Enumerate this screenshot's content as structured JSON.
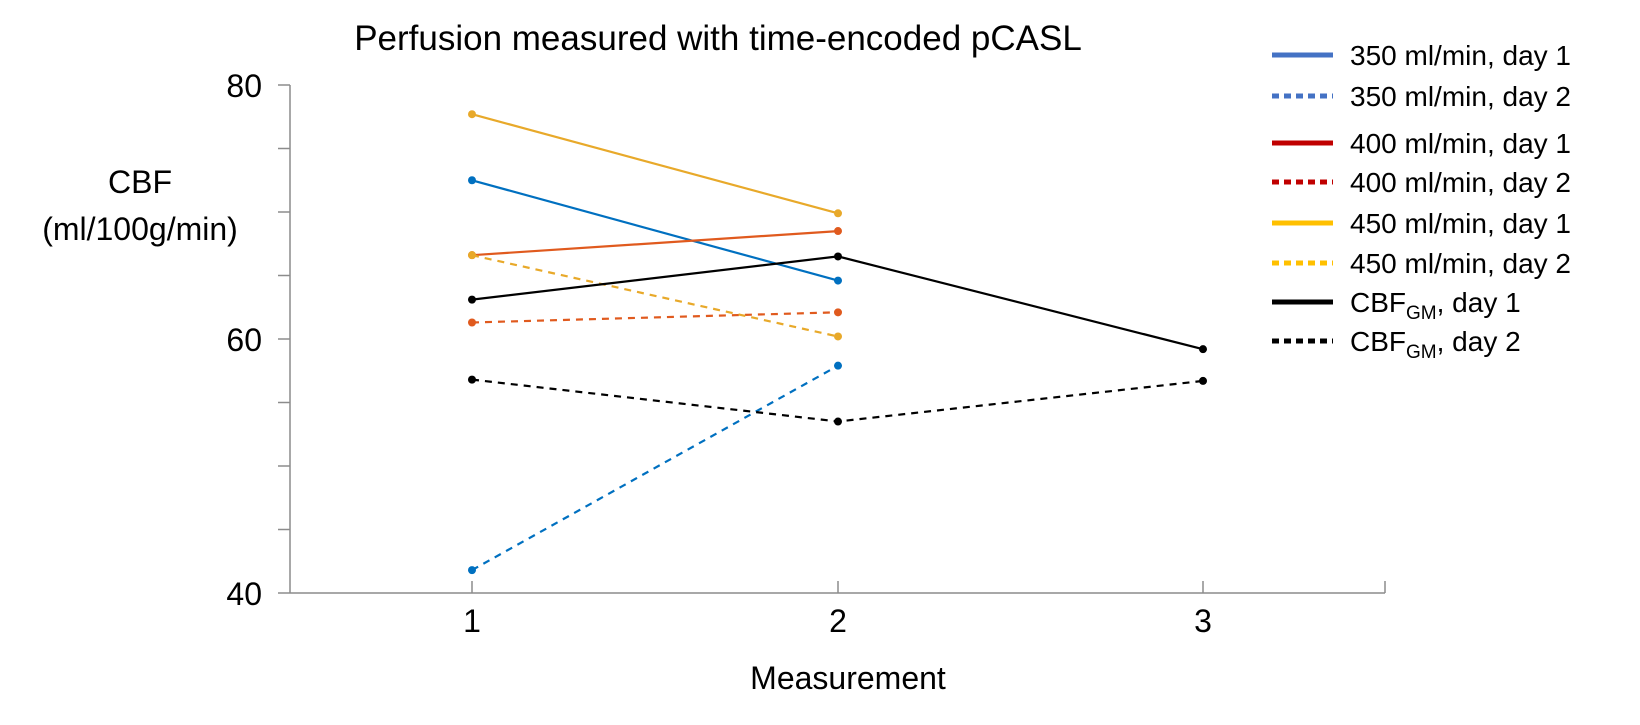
{
  "chart_data": {
    "type": "line",
    "title": "Perfusion measured with time-encoded pCASL",
    "ylabel_line1": "CBF",
    "ylabel_line2": "(ml/100g/min)",
    "xlabel": "Measurement",
    "ylim": [
      40,
      80
    ],
    "yticks": [
      40,
      60,
      80
    ],
    "x_categories": [
      "1",
      "2",
      "3"
    ],
    "series": [
      {
        "name": "350 ml/min, day 1",
        "color": "#0070C0",
        "legend_color": "#4472C4",
        "dash": false,
        "x": [
          1,
          2
        ],
        "y": [
          72.5,
          64.6
        ]
      },
      {
        "name": "350 ml/min, day 2",
        "color": "#0070C0",
        "legend_color": "#4472C4",
        "dash": true,
        "x": [
          1,
          2
        ],
        "y": [
          41.8,
          57.9
        ]
      },
      {
        "name": "400 ml/min, day 1",
        "color": "#E05A1E",
        "legend_color": "#C00000",
        "dash": false,
        "x": [
          1,
          2
        ],
        "y": [
          66.6,
          68.5
        ]
      },
      {
        "name": "400 ml/min, day 2",
        "color": "#E05A1E",
        "legend_color": "#C00000",
        "dash": true,
        "x": [
          1,
          2
        ],
        "y": [
          61.3,
          62.1
        ]
      },
      {
        "name": "450 ml/min, day 1",
        "color": "#E8A92A",
        "legend_color": "#FFC000",
        "dash": false,
        "x": [
          1,
          2
        ],
        "y": [
          77.7,
          69.9
        ]
      },
      {
        "name": "450 ml/min, day 2",
        "color": "#E8A92A",
        "legend_color": "#FFC000",
        "dash": true,
        "x": [
          1,
          2
        ],
        "y": [
          66.6,
          60.2
        ]
      },
      {
        "name": "CBF_GM, day 1",
        "color": "#000000",
        "legend_color": "#000000",
        "dash": false,
        "x": [
          1,
          2,
          3
        ],
        "y": [
          63.1,
          66.5,
          59.2
        ]
      },
      {
        "name": "CBF_GM, day 2",
        "color": "#000000",
        "legend_color": "#000000",
        "dash": true,
        "x": [
          1,
          2,
          3
        ],
        "y": [
          56.8,
          53.5,
          56.7
        ]
      }
    ],
    "legend": {
      "position": "top-right",
      "entries": [
        {
          "label": "350 ml/min, day 1"
        },
        {
          "label": "350 ml/min, day 2"
        },
        {
          "label": "400 ml/min, day 1"
        },
        {
          "label": "400 ml/min, day 2"
        },
        {
          "label": "450 ml/min, day 1"
        },
        {
          "label": "450 ml/min, day 2"
        },
        {
          "label_main": "CBF",
          "label_sub": "GM",
          "label_rest": ", day 1"
        },
        {
          "label_main": "CBF",
          "label_sub": "GM",
          "label_rest": ", day 2"
        }
      ]
    },
    "grid": false
  }
}
